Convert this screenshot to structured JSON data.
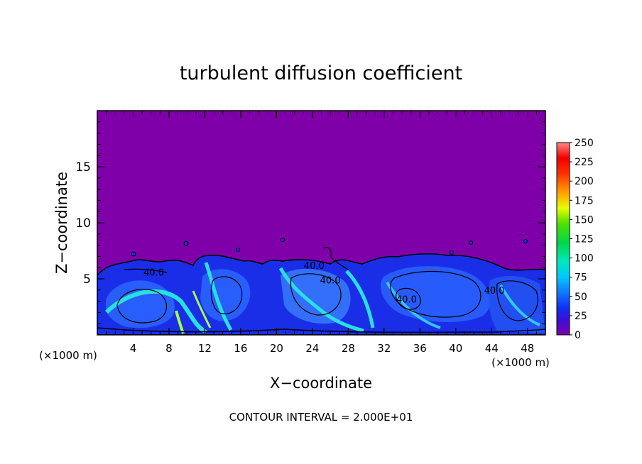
{
  "chart_data": {
    "type": "heatmap",
    "title": "turbulent diffusion coefficient",
    "xlabel": "X−coordinate",
    "ylabel": "Z−coordinate",
    "x_unit_left": "(×1000 m)",
    "x_unit_right": "(×1000 m)",
    "footer": "CONTOUR INTERVAL = 2.000E+01",
    "xlim": [
      0,
      50
    ],
    "ylim": [
      0,
      20
    ],
    "x_ticks": [
      4,
      8,
      12,
      16,
      20,
      24,
      28,
      32,
      36,
      40,
      44,
      48
    ],
    "y_ticks": [
      5,
      10,
      15
    ],
    "colorbar": {
      "range": [
        0,
        250
      ],
      "ticks": [
        0,
        25,
        50,
        75,
        100,
        125,
        150,
        175,
        200,
        225,
        250
      ]
    },
    "contour_labels": [
      {
        "text": "40.0",
        "x": 6.3,
        "z": 5.6
      },
      {
        "text": "40.0",
        "x": 24.2,
        "z": 6.2
      },
      {
        "text": "40.0",
        "x": 26.0,
        "z": 4.9
      },
      {
        "text": "40.0",
        "x": 34.5,
        "z": 3.2
      },
      {
        "text": "40.0",
        "x": 44.3,
        "z": 4.0
      }
    ],
    "colors": {
      "background": "#7f00a8",
      "low": "#1428f0",
      "mid": "#2a6cff",
      "high": "#28e0e0",
      "peak": "#a0ff50"
    }
  }
}
